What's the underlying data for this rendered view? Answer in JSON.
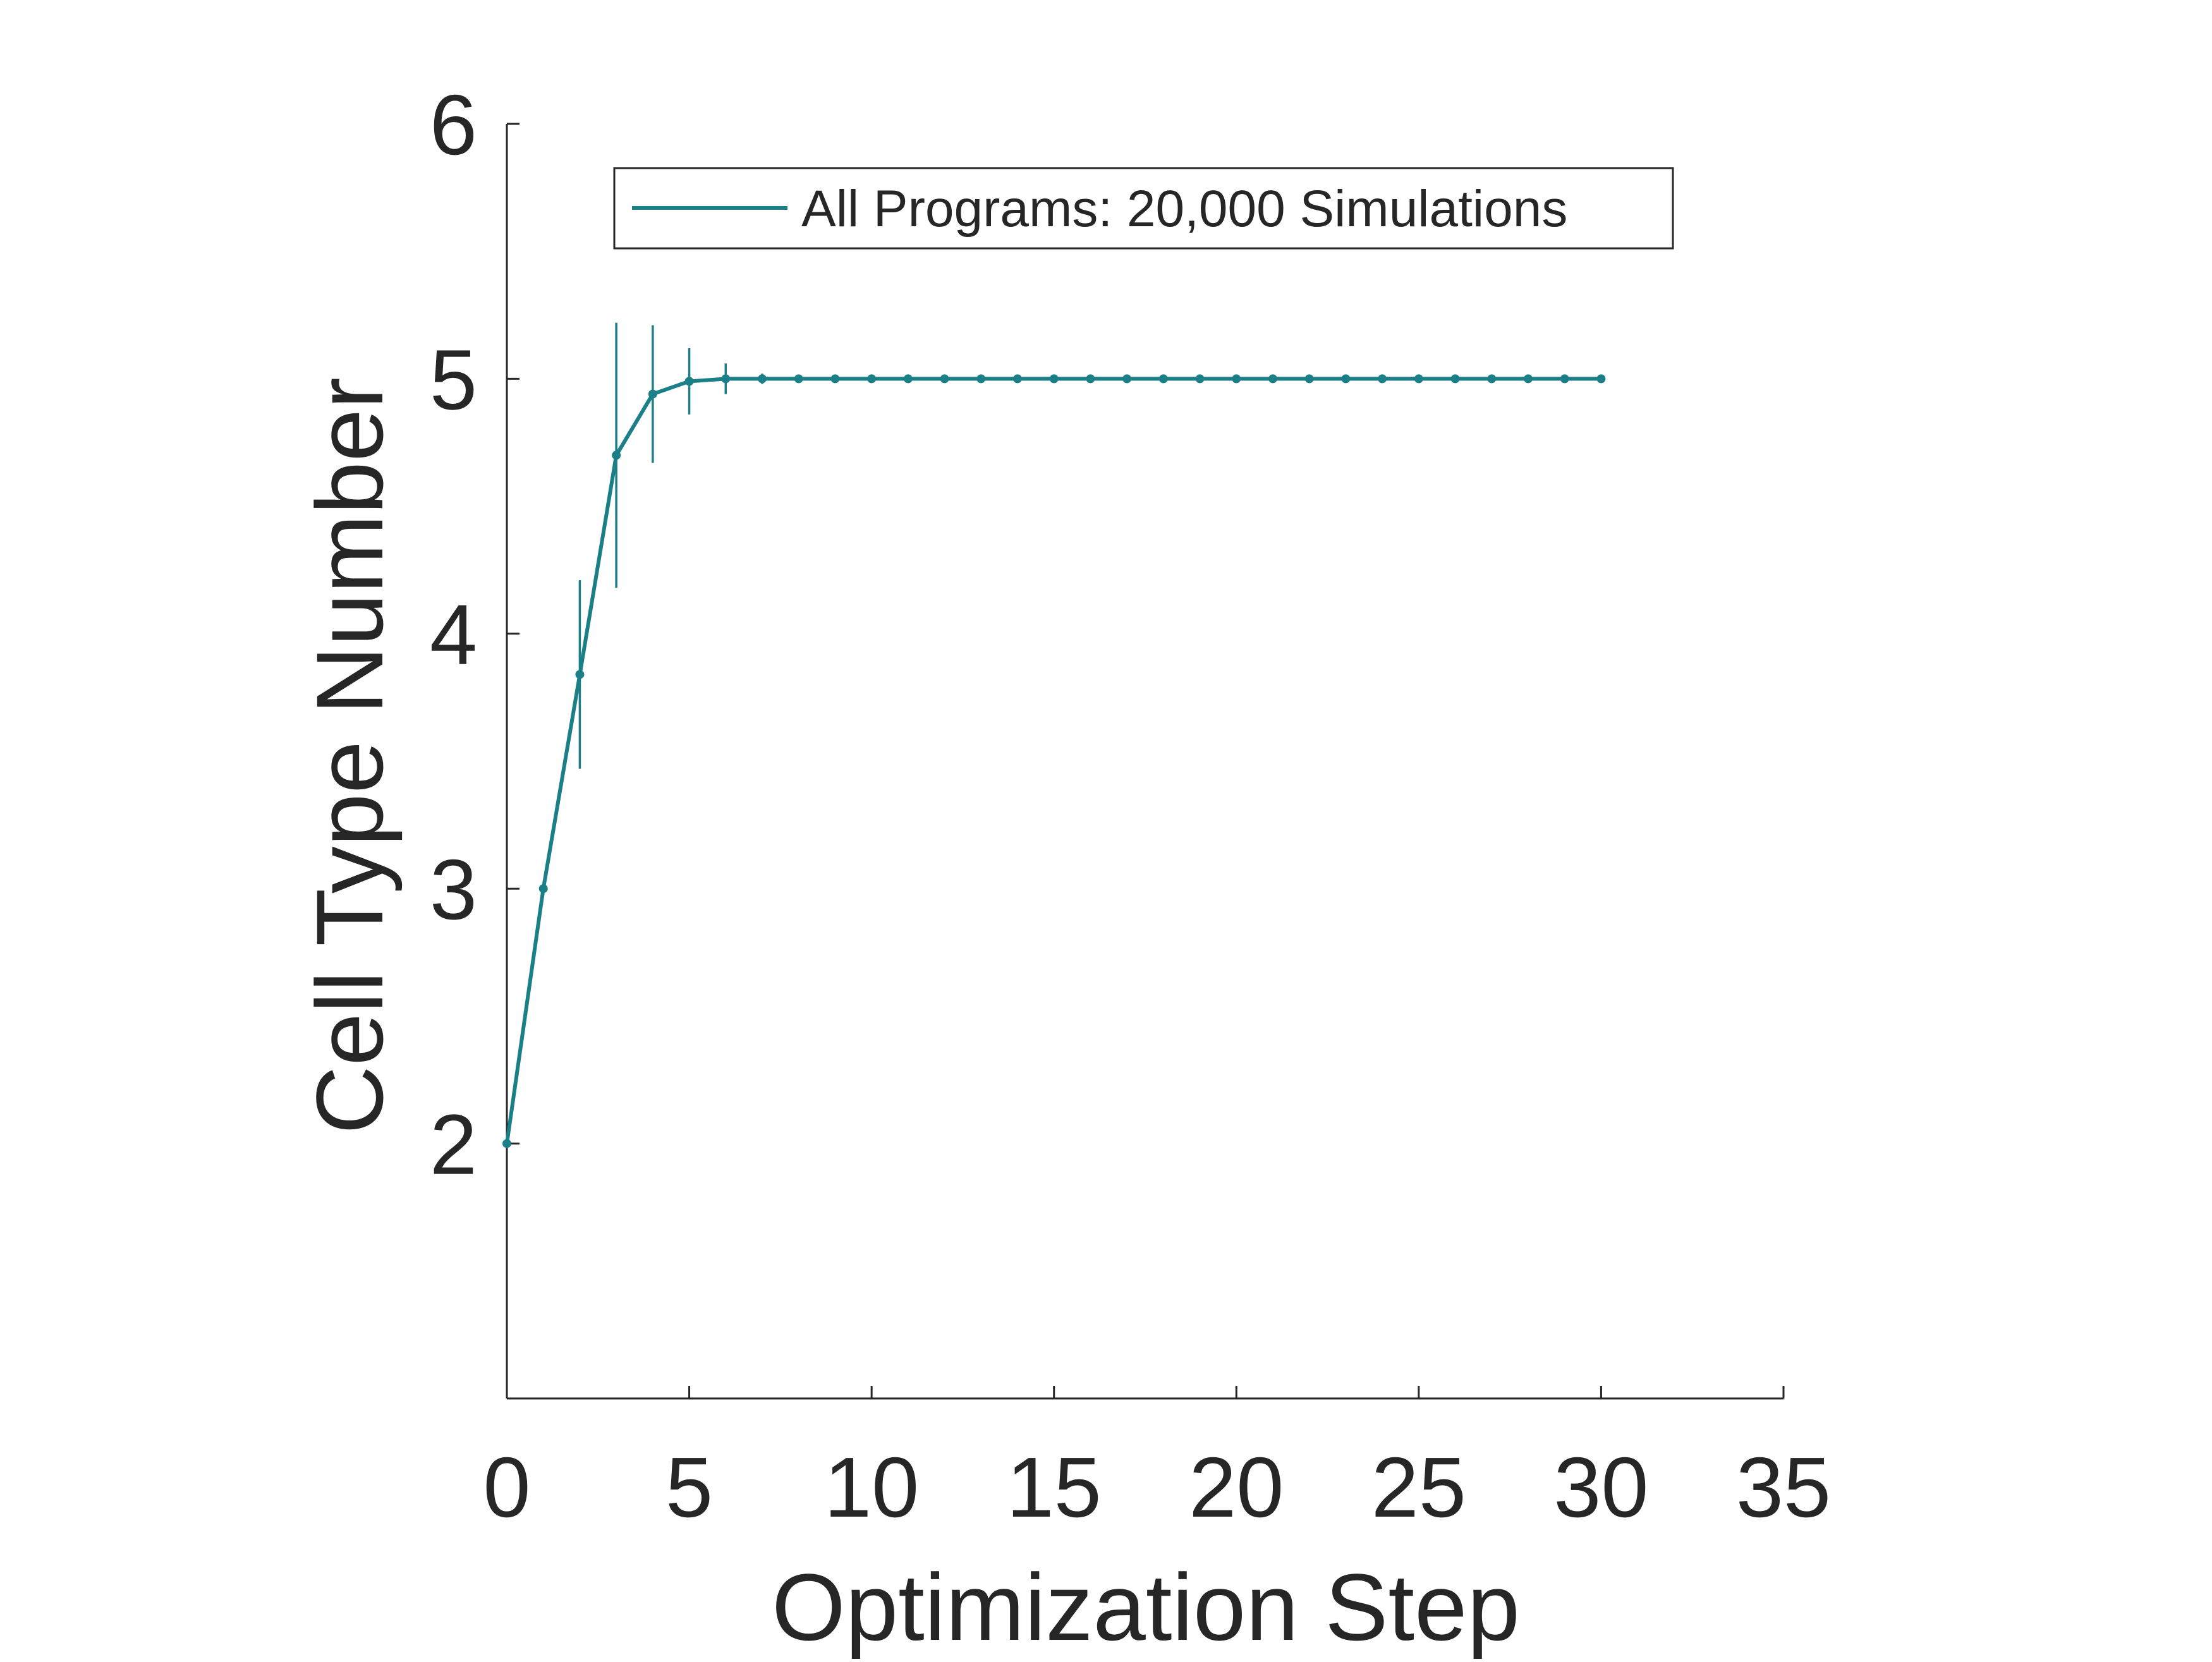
{
  "chart_data": {
    "type": "line",
    "title": "",
    "xlabel": "Optimization Step",
    "ylabel": "Cell Type Number",
    "xlim": [
      0,
      35
    ],
    "ylim": [
      1,
      6
    ],
    "xticks": [
      0,
      5,
      10,
      15,
      20,
      25,
      30,
      35
    ],
    "yticks": [
      2,
      3,
      4,
      5,
      6
    ],
    "xtick_labels": [
      "0",
      "5",
      "10",
      "15",
      "20",
      "25",
      "30",
      "35"
    ],
    "ytick_labels": [
      "2",
      "3",
      "4",
      "5",
      "6"
    ],
    "grid": false,
    "legend_position": "top",
    "series": [
      {
        "name": "All Programs: 20,000 Simulations",
        "color": "#1a7f86",
        "x": [
          0,
          1,
          2,
          3,
          4,
          5,
          6,
          7,
          8,
          9,
          10,
          11,
          12,
          13,
          14,
          15,
          16,
          17,
          18,
          19,
          20,
          21,
          22,
          23,
          24,
          25,
          26,
          27,
          28,
          29,
          30
        ],
        "y": [
          2.0,
          3.0,
          3.84,
          4.7,
          4.94,
          4.99,
          5.0,
          5.0,
          5.0,
          5.0,
          5.0,
          5.0,
          5.0,
          5.0,
          5.0,
          5.0,
          5.0,
          5.0,
          5.0,
          5.0,
          5.0,
          5.0,
          5.0,
          5.0,
          5.0,
          5.0,
          5.0,
          5.0,
          5.0,
          5.0,
          5.0
        ],
        "error": [
          0,
          0,
          0.37,
          0.52,
          0.27,
          0.13,
          0.06,
          0.02,
          0,
          0,
          0,
          0,
          0,
          0,
          0,
          0,
          0,
          0,
          0,
          0,
          0,
          0,
          0,
          0,
          0,
          0,
          0,
          0,
          0,
          0,
          0
        ]
      }
    ]
  }
}
